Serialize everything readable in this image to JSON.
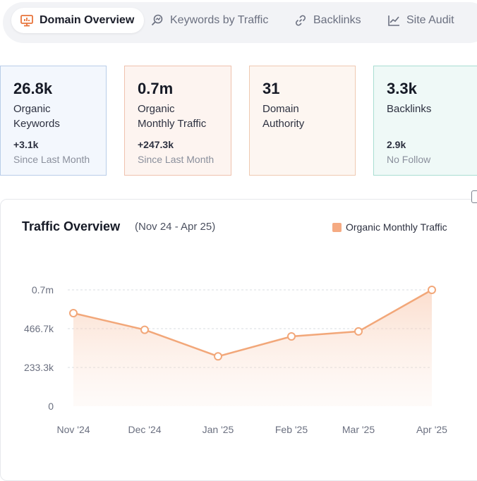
{
  "tabs": [
    {
      "label": "Domain Overview",
      "icon": "monitor-chart-icon",
      "active": true
    },
    {
      "label": "Keywords by Traffic",
      "icon": "keyword-search-icon",
      "active": false
    },
    {
      "label": "Backlinks",
      "icon": "link-icon",
      "active": false
    },
    {
      "label": "Site Audit",
      "icon": "line-chart-icon",
      "active": false
    }
  ],
  "stats": {
    "keywords": {
      "value": "26.8k",
      "label_line1": "Organic",
      "label_line2": "Keywords",
      "delta": "+3.1k",
      "since": "Since Last Month"
    },
    "traffic": {
      "value": "0.7m",
      "label_line1": "Organic",
      "label_line2": "Monthly Traffic",
      "delta": "+247.3k",
      "since": "Since Last Month"
    },
    "authority": {
      "value": "31",
      "label_line1": "Domain",
      "label_line2": "Authority"
    },
    "backlinks": {
      "value": "3.3k",
      "label": "Backlinks",
      "sub_value": "2.9k",
      "sub_label": "No Follow"
    }
  },
  "chart": {
    "title": "Traffic Overview",
    "range": "(Nov 24 - Apr 25)",
    "legend": "Organic Monthly Traffic"
  },
  "colors": {
    "accent": "#f5aa82",
    "line": "#f2a779",
    "tab_icon_active": "#e8743b"
  },
  "chart_data": {
    "type": "area",
    "categories": [
      "Nov '24",
      "Dec '24",
      "Jan '25",
      "Feb '25",
      "Mar '25",
      "Apr '25"
    ],
    "series": [
      {
        "name": "Organic Monthly Traffic",
        "values": [
          560000,
          460000,
          300000,
          420000,
          450000,
          700000
        ]
      }
    ],
    "ytick_values": [
      0,
      233300,
      466700,
      700000
    ],
    "ytick_labels": [
      "0",
      "233.3k",
      "466.7k",
      "0.7m"
    ],
    "ylim": [
      0,
      700000
    ],
    "grid": true,
    "legend_position": "top-right"
  }
}
